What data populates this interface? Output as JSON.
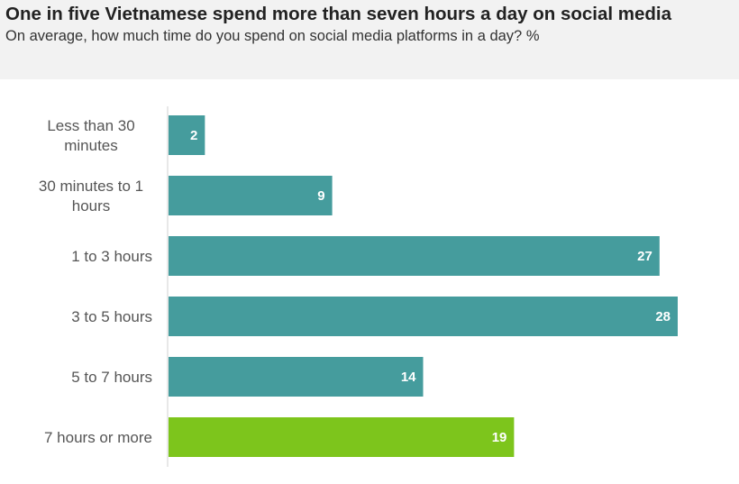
{
  "chart_data": {
    "type": "bar",
    "orientation": "horizontal",
    "title": "One in five Vietnamese spend more than seven hours a day on social media",
    "subtitle": "On average, how much time do you spend on social media platforms in a day? %",
    "categories": [
      [
        "Less than 30",
        "minutes"
      ],
      [
        "30 minutes to 1",
        "hours"
      ],
      [
        "1 to 3 hours"
      ],
      [
        "3 to 5 hours"
      ],
      [
        "5 to 7 hours"
      ],
      [
        "7 hours or more"
      ]
    ],
    "values": [
      2,
      9,
      27,
      28,
      14,
      19
    ],
    "value_labels": [
      "2",
      "9",
      "27",
      "28",
      "14",
      "19"
    ],
    "highlight_index": 5,
    "colors": {
      "bar": "#459c9d",
      "highlight": "#7dc51c",
      "axis": "#d0d0d0"
    },
    "xlim": [
      0,
      28
    ],
    "grid": false,
    "legend": "none"
  }
}
